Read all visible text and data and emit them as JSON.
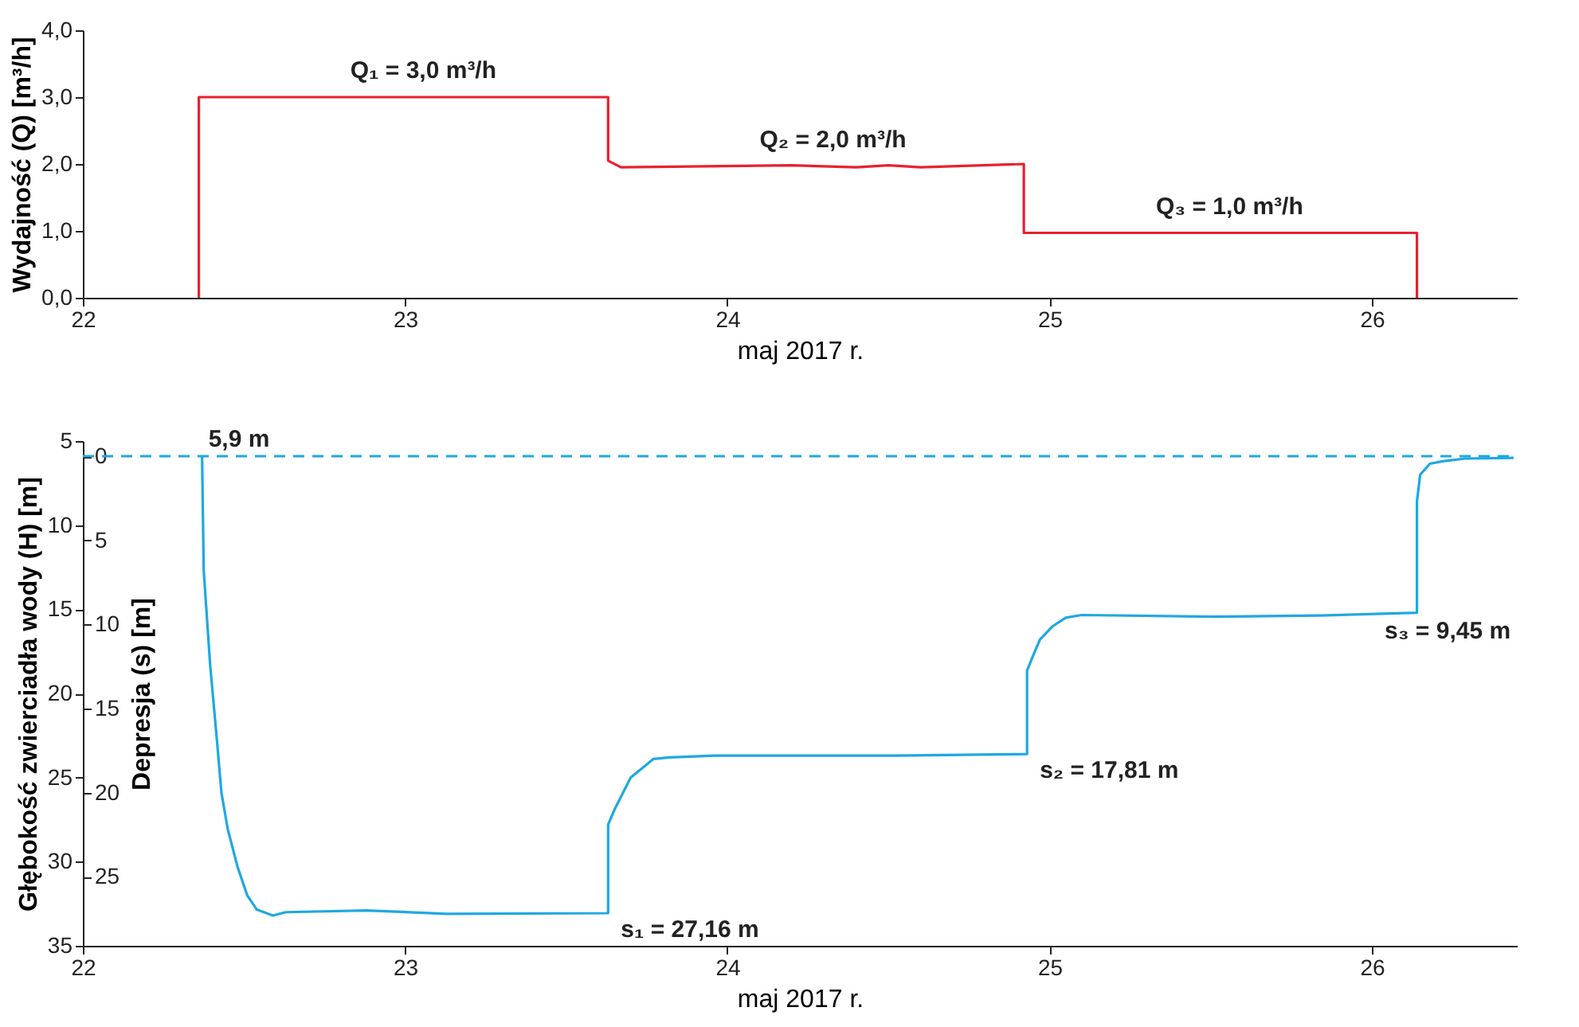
{
  "chart_data": [
    {
      "type": "line",
      "ylabel": "Wydajność (Q) [m³/h]",
      "xlabel": "maj 2017 r.",
      "xlim": [
        22,
        26.45
      ],
      "xticks": [
        22,
        23,
        24,
        25,
        26
      ],
      "ylim": [
        0,
        4
      ],
      "yticks": [
        {
          "value": 0,
          "label": "0,0"
        },
        {
          "value": 1,
          "label": "1,0"
        },
        {
          "value": 2,
          "label": "2,0"
        },
        {
          "value": 3,
          "label": "3,0"
        },
        {
          "value": 4,
          "label": "4,0"
        }
      ],
      "series": [
        {
          "color": "#e8212e",
          "line_style": "solid",
          "x": [
            22.36,
            22.36,
            23.63,
            23.63,
            23.67,
            24.2,
            24.4,
            24.5,
            24.6,
            24.92,
            24.92,
            26.14,
            26.14
          ],
          "values": [
            0,
            3,
            3,
            2.05,
            1.95,
            1.98,
            1.95,
            1.98,
            1.95,
            2.0,
            0.97,
            0.97,
            0
          ]
        }
      ],
      "annotations": [
        {
          "text": "Q₁ = 3,0 m³/h",
          "x": 22.83,
          "y": 3
        },
        {
          "text": "Q₂ = 2,0 m³/h",
          "x": 24.1,
          "y": 1.97
        },
        {
          "text": "Q₃ = 1,0 m³/h",
          "x": 25.33,
          "y": 0.97
        }
      ]
    },
    {
      "type": "line",
      "ylabel": "Głębokość zwierciadła wody (H) [m]",
      "y2label": "Depresja (s) [m]",
      "xlabel": "maj 2017 r.",
      "xlim": [
        22,
        26.45
      ],
      "xticks": [
        22,
        23,
        24,
        25,
        26
      ],
      "ylim": [
        35,
        5
      ],
      "yticks": [
        5,
        10,
        15,
        20,
        25,
        30,
        35
      ],
      "y2lim": [
        29.1,
        -0.9
      ],
      "y2ticks": [
        0,
        5,
        10,
        15,
        20,
        25
      ],
      "series": [
        {
          "color": "#1fa8e0",
          "line_style": "solid",
          "x": [
            22.37,
            22.375,
            22.395,
            22.416,
            22.43,
            22.45,
            22.48,
            22.51,
            22.54,
            22.59,
            22.63,
            22.88,
            23.13,
            23.63,
            23.63,
            23.63,
            23.65,
            23.7,
            23.77,
            23.82,
            23.96,
            24.02,
            24.52,
            24.93,
            24.93,
            24.95,
            24.97,
            25.01,
            25.05,
            25.1,
            25.51,
            25.84,
            26.14,
            26.14,
            26.15,
            26.18,
            26.22,
            26.29,
            26.44
          ],
          "values": [
            5.9,
            12.66,
            18.3,
            22.76,
            25.9,
            28.1,
            30.3,
            32.0,
            32.85,
            33.2,
            33.0,
            32.9,
            33.1,
            33.06,
            30.6,
            27.8,
            26.9,
            25.0,
            23.9,
            23.8,
            23.7,
            23.7,
            23.7,
            23.6,
            18.65,
            17.7,
            16.8,
            16.0,
            15.5,
            15.34,
            15.44,
            15.37,
            15.2,
            8.57,
            7.0,
            6.35,
            6.2,
            6.04,
            6.0
          ]
        }
      ],
      "ref_lines": [
        {
          "axis": "y",
          "value": 5.9,
          "label": "5,9 m",
          "color": "#1fa8e0",
          "line_style": "dashed"
        }
      ],
      "annotations": [
        {
          "text": "s₁ = 27,16 m",
          "x": 23.63,
          "y": 33.06
        },
        {
          "text": "s₂ = 17,81 m",
          "x": 24.93,
          "y": 23.6
        },
        {
          "text": "s₃ = 9,45 m",
          "x": 26.0,
          "y": 15.3
        }
      ]
    }
  ]
}
